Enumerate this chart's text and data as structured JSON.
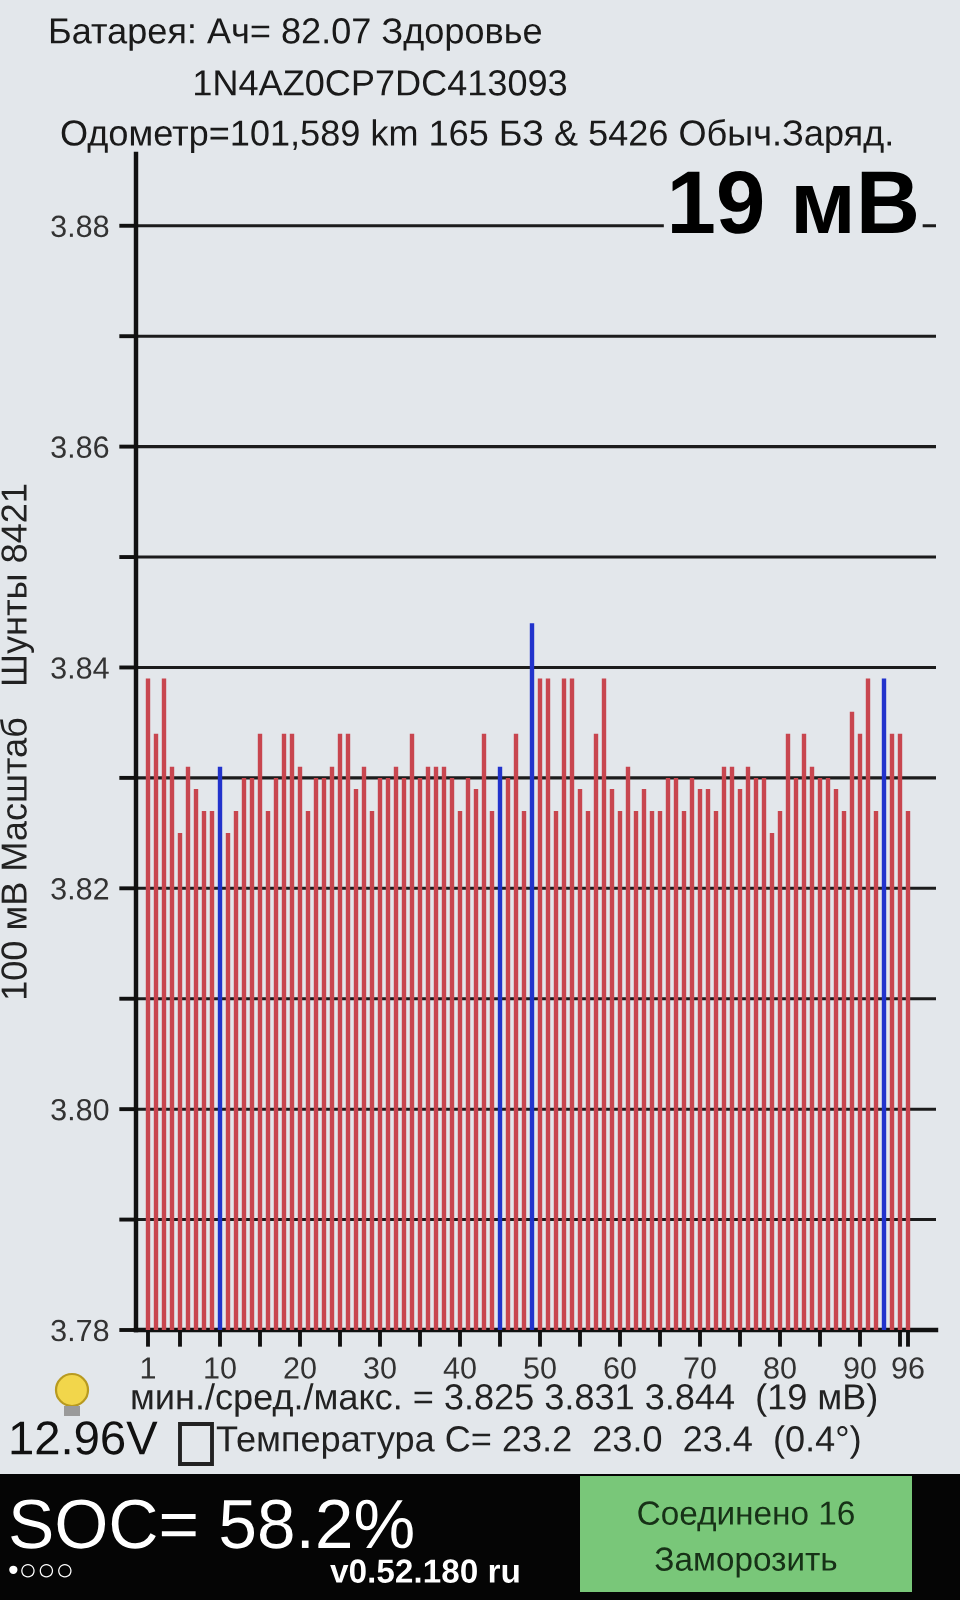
{
  "chart_data": {
    "type": "bar",
    "title": "Батарея: Ач= 82.07 Здоровье",
    "subtitle": "1N4AZ0CP7DC413093",
    "ylabel": "100 мВ Масштаб   Шунты 8421",
    "annotations": [
      "Одометр=101,589 km 165 БЗ & 5426 Обыч.Заряд.",
      "19 мВ",
      "мин./сред./макс. = 3.825 3.831 3.844  (19 мВ)",
      "12.96V",
      "Температура C= 23.2  23.0  23.4  (0.4°)",
      "SOC= 58.2%",
      "•○○○",
      "v0.52.180 ru",
      "Соединено 16",
      "Заморозить"
    ],
    "x": [
      1,
      2,
      3,
      4,
      5,
      6,
      7,
      8,
      9,
      10,
      11,
      12,
      13,
      14,
      15,
      16,
      17,
      18,
      19,
      20,
      21,
      22,
      23,
      24,
      25,
      26,
      27,
      28,
      29,
      30,
      31,
      32,
      33,
      34,
      35,
      36,
      37,
      38,
      39,
      40,
      41,
      42,
      43,
      44,
      45,
      46,
      47,
      48,
      49,
      50,
      51,
      52,
      53,
      54,
      55,
      56,
      57,
      58,
      59,
      60,
      61,
      62,
      63,
      64,
      65,
      66,
      67,
      68,
      69,
      70,
      71,
      72,
      73,
      74,
      75,
      76,
      77,
      78,
      79,
      80,
      81,
      82,
      83,
      84,
      85,
      86,
      87,
      88,
      89,
      90,
      91,
      92,
      93,
      94,
      95,
      96
    ],
    "values": [
      3.839,
      3.834,
      3.839,
      3.831,
      3.825,
      3.831,
      3.829,
      3.827,
      3.827,
      3.831,
      3.825,
      3.827,
      3.83,
      3.83,
      3.834,
      3.827,
      3.83,
      3.834,
      3.834,
      3.831,
      3.827,
      3.83,
      3.83,
      3.831,
      3.834,
      3.834,
      3.829,
      3.831,
      3.827,
      3.83,
      3.83,
      3.831,
      3.83,
      3.834,
      3.83,
      3.831,
      3.831,
      3.831,
      3.83,
      3.827,
      3.83,
      3.829,
      3.834,
      3.827,
      3.831,
      3.83,
      3.834,
      3.827,
      3.844,
      3.839,
      3.839,
      3.827,
      3.839,
      3.839,
      3.829,
      3.827,
      3.834,
      3.839,
      3.829,
      3.827,
      3.831,
      3.827,
      3.829,
      3.827,
      3.827,
      3.83,
      3.83,
      3.827,
      3.83,
      3.829,
      3.829,
      3.827,
      3.831,
      3.831,
      3.829,
      3.831,
      3.83,
      3.83,
      3.825,
      3.827,
      3.834,
      3.83,
      3.834,
      3.831,
      3.83,
      3.83,
      3.829,
      3.827,
      3.836,
      3.834,
      3.839,
      3.827,
      3.839,
      3.834,
      3.834,
      3.827
    ],
    "colors": [
      "#c8464f",
      "#c8464f",
      "#c8464f",
      "#c8464f",
      "#c8464f",
      "#c8464f",
      "#c8464f",
      "#c8464f",
      "#c8464f",
      "#2233cc",
      "#c8464f",
      "#c8464f",
      "#c8464f",
      "#c8464f",
      "#c8464f",
      "#c8464f",
      "#c8464f",
      "#c8464f",
      "#c8464f",
      "#c8464f",
      "#c8464f",
      "#c8464f",
      "#c8464f",
      "#c8464f",
      "#c8464f",
      "#c8464f",
      "#c8464f",
      "#c8464f",
      "#c8464f",
      "#c8464f",
      "#c8464f",
      "#c8464f",
      "#c8464f",
      "#c8464f",
      "#c8464f",
      "#c8464f",
      "#c8464f",
      "#c8464f",
      "#c8464f",
      "#c8464f",
      "#c8464f",
      "#c8464f",
      "#c8464f",
      "#c8464f",
      "#2233cc",
      "#c8464f",
      "#c8464f",
      "#c8464f",
      "#2233cc",
      "#c8464f",
      "#c8464f",
      "#c8464f",
      "#c8464f",
      "#c8464f",
      "#c8464f",
      "#c8464f",
      "#c8464f",
      "#c8464f",
      "#c8464f",
      "#c8464f",
      "#c8464f",
      "#c8464f",
      "#c8464f",
      "#c8464f",
      "#c8464f",
      "#c8464f",
      "#c8464f",
      "#c8464f",
      "#c8464f",
      "#c8464f",
      "#c8464f",
      "#c8464f",
      "#c8464f",
      "#c8464f",
      "#c8464f",
      "#c8464f",
      "#c8464f",
      "#c8464f",
      "#c8464f",
      "#c8464f",
      "#c8464f",
      "#c8464f",
      "#c8464f",
      "#c8464f",
      "#c8464f",
      "#c8464f",
      "#c8464f",
      "#c8464f",
      "#c8464f",
      "#c8464f",
      "#c8464f",
      "#c8464f",
      "#2233cc",
      "#c8464f",
      "#c8464f",
      "#c8464f"
    ],
    "xlim": [
      -0.5,
      99.5
    ],
    "ylim": [
      3.78,
      3.8865
    ],
    "xticks": [
      1,
      {
        "value": 5,
        "label": null
      },
      10,
      {
        "value": 15,
        "label": null
      },
      20,
      {
        "value": 25,
        "label": null
      },
      30,
      {
        "value": 35,
        "label": null
      },
      40,
      {
        "value": 45,
        "label": null
      },
      50,
      {
        "value": 55,
        "label": null
      },
      60,
      {
        "value": 65,
        "label": null
      },
      70,
      {
        "value": 75,
        "label": null
      },
      80,
      {
        "value": 85,
        "label": null
      },
      90,
      {
        "value": 95,
        "label": null
      },
      96
    ],
    "yticks": [
      3.78,
      {
        "value": 3.79,
        "label": null
      },
      {
        "value": 3.8,
        "label": "3.80"
      },
      {
        "value": 3.81,
        "label": null
      },
      3.82,
      {
        "value": 3.83,
        "label": null
      },
      3.84,
      {
        "value": 3.85,
        "label": null
      },
      3.86,
      {
        "value": 3.87,
        "label": null
      },
      3.88
    ],
    "grid": "y"
  }
}
